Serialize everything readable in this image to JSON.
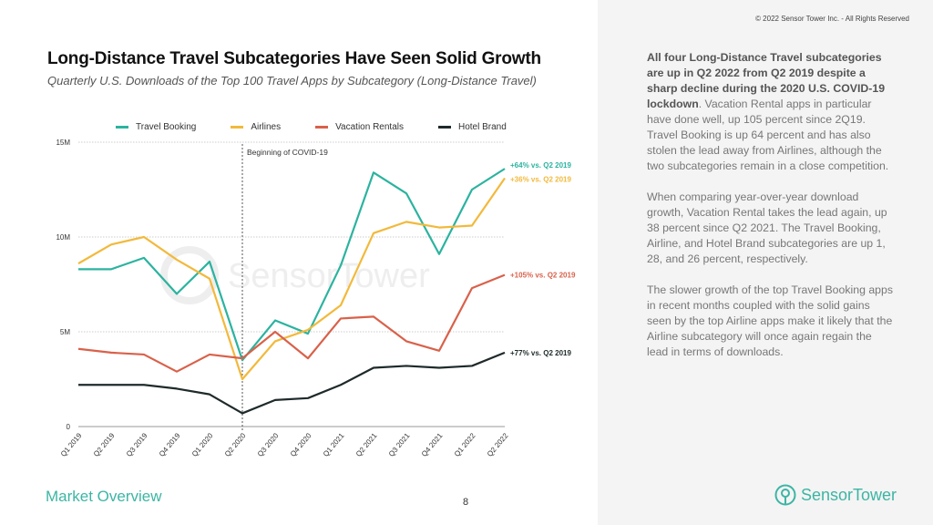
{
  "slide": {
    "title": "Long-Distance Travel Subcategories Have Seen Solid Growth",
    "subtitle": "Quarterly U.S. Downloads of the Top 100 Travel Apps by Subcategory (Long-Distance Travel)",
    "copyright": "© 2022 Sensor Tower Inc. - All Rights Reserved",
    "footer": "Market Overview",
    "page_number": "8",
    "logo": "SensorTower",
    "watermark": "SensorTower"
  },
  "commentary": {
    "p1_bold": "All four Long-Distance Travel subcategories are up in Q2 2022 from Q2 2019 despite a sharp decline during the 2020 U.S. COVID-19 lockdown",
    "p1_rest": ". Vacation Rental apps in particular have done well, up 105 percent since 2Q19. Travel Booking is up 64 percent and has also stolen the lead away from Airlines, although the two subcategories remain in a close competition.",
    "p2": "When comparing year-over-year download growth, Vacation Rental takes the lead again, up 38 percent since Q2 2021. The Travel Booking, Airline, and Hotel Brand subcategories are up 1, 28, and 26 percent, respectively.",
    "p3": "The slower growth of the top Travel Booking apps in recent months coupled with the solid gains seen by the top Airline apps make it likely that the Airline subcategory will once again regain the lead in terms of downloads."
  },
  "chart_data": {
    "type": "line",
    "categories": [
      "Q1 2019",
      "Q2 2019",
      "Q3 2019",
      "Q4 2019",
      "Q1 2020",
      "Q2 2020",
      "Q3 2020",
      "Q4 2020",
      "Q1 2021",
      "Q2 2021",
      "Q3 2021",
      "Q4 2021",
      "Q1 2022",
      "Q2 2022"
    ],
    "ylim": [
      0,
      15
    ],
    "yticks": [
      {
        "v": 0,
        "label": "0"
      },
      {
        "v": 5,
        "label": "5M"
      },
      {
        "v": 10,
        "label": "10M"
      },
      {
        "v": 15,
        "label": "15M"
      }
    ],
    "grid": true,
    "legend_position": "top",
    "annotation": {
      "category": "Q2 2020",
      "label": "Beginning of COVID-19"
    },
    "series": [
      {
        "name": "Travel Booking",
        "color": "#2bb39f",
        "values": [
          8.3,
          8.3,
          8.9,
          7.0,
          8.7,
          3.5,
          5.6,
          4.9,
          8.5,
          13.4,
          12.3,
          9.1,
          12.5,
          13.6
        ],
        "end_label": "+64% vs. Q2 2019"
      },
      {
        "name": "Airlines",
        "color": "#f2b93b",
        "values": [
          8.6,
          9.6,
          10.0,
          8.8,
          7.8,
          2.5,
          4.5,
          5.1,
          6.4,
          10.2,
          10.8,
          10.5,
          10.6,
          13.1
        ],
        "end_label": "+36% vs. Q2 2019"
      },
      {
        "name": "Vacation Rentals",
        "color": "#d9614a",
        "values": [
          4.1,
          3.9,
          3.8,
          2.9,
          3.8,
          3.6,
          5.0,
          3.6,
          5.7,
          5.8,
          4.5,
          4.0,
          7.3,
          8.0
        ],
        "end_label": "+105% vs. Q2 2019"
      },
      {
        "name": "Hotel Brand",
        "color": "#1f2a2a",
        "values": [
          2.2,
          2.2,
          2.2,
          2.0,
          1.7,
          0.7,
          1.4,
          1.5,
          2.2,
          3.1,
          3.2,
          3.1,
          3.2,
          3.9
        ],
        "end_label": "+77% vs. Q2 2019"
      }
    ]
  }
}
